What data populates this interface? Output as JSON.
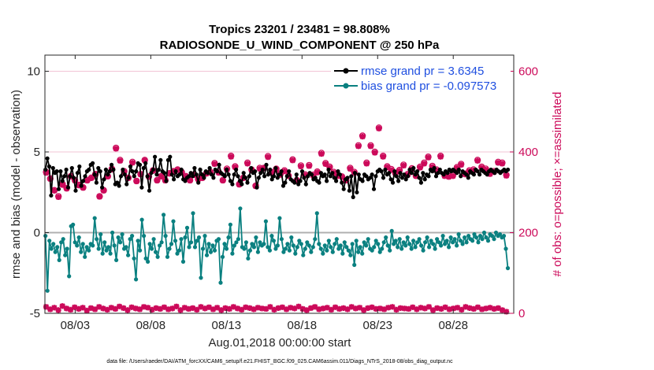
{
  "chart_data": {
    "type": "line",
    "title": "Tropics 23201 / 23481 = 98.808%",
    "subtitle": "RADIOSONDE_U_WIND_COMPONENT @ 250 hPa",
    "xlabel": "Aug.01,2018 00:00:00 start",
    "ylabel": "rmse and bias (model - observation)",
    "ylabel_right": "# of obs: o=possible; ×=assimilated",
    "footnote": "data file: /Users/raeder/DAI/ATM_forcXX/CAM6_setup/f.e21.FHIST_BGC.f09_025.CAM6assim.011/Diags_NTrS_2018-08/obs_diag_output.nc",
    "x_ticks": [
      "08/03",
      "08/08",
      "08/13",
      "08/18",
      "08/23",
      "08/28"
    ],
    "x_tick_days": [
      3,
      8,
      13,
      18,
      23,
      28
    ],
    "xlim_days": [
      1,
      32
    ],
    "y_ticks": [
      -5,
      0,
      5,
      10
    ],
    "ylim": [
      -5,
      11
    ],
    "y2_ticks": [
      0,
      200,
      400,
      600
    ],
    "y2lim": [
      0,
      640
    ],
    "legend": [
      {
        "label": "rmse grand pr = 3.6345",
        "color": "#000000"
      },
      {
        "label": "bias grand pr = -0.097573",
        "color": "#0a8080"
      }
    ],
    "series": [
      {
        "name": "rmse",
        "color": "#000000",
        "values": [
          3.9,
          4.6,
          4.1,
          2.3,
          4.0,
          3.7,
          3.8,
          2.7,
          3.8,
          3.2,
          3.5,
          3.9,
          2.8,
          3.5,
          4.0,
          3.4,
          2.6,
          3.7,
          4.1,
          2.9,
          3.2,
          3.5,
          3.8,
          3.9,
          4.2,
          4.3,
          3.6,
          3.1,
          4.0,
          3.8,
          2.8,
          3.3,
          3.9,
          3.6,
          3.8,
          4.2,
          3.9,
          3.0,
          3.1,
          2.9,
          3.5,
          3.9,
          3.6,
          3.0,
          3.4,
          4.1,
          3.8,
          3.5,
          3.8,
          4.3,
          4.2,
          2.8,
          4.0,
          4.3,
          3.5,
          2.6,
          3.7,
          3.9,
          4.7,
          3.6,
          3.9,
          4.5,
          3.8,
          3.7,
          3.2,
          4.5,
          4.7,
          3.6,
          3.3,
          3.8,
          3.5,
          3.6,
          3.9,
          3.3,
          3.2,
          3.4,
          3.5,
          3.7,
          3.5,
          4.0,
          3.6,
          3.1,
          3.9,
          3.6,
          3.4,
          3.8,
          3.7,
          4.0,
          3.6,
          3.4,
          3.9,
          3.8,
          4.2,
          3.7,
          3.6,
          3.5,
          3.9,
          3.6,
          3.2,
          3.0,
          3.6,
          3.9,
          3.5,
          3.2,
          3.0,
          3.7,
          3.4,
          3.1,
          3.5,
          4.0,
          3.7,
          3.8,
          2.8,
          3.4,
          3.7,
          3.9,
          3.5,
          4.2,
          3.6,
          3.9,
          3.3,
          3.5,
          4.0,
          3.4,
          3.6,
          3.8,
          2.9,
          3.1,
          3.5,
          3.8,
          3.3,
          3.2,
          3.1,
          3.6,
          3.0,
          3.2,
          3.8,
          3.4,
          3.0,
          3.5,
          3.7,
          3.6,
          3.3,
          3.4,
          3.2,
          3.1,
          3.7,
          3.5,
          3.6,
          3.2,
          3.9,
          3.5,
          3.7,
          3.4,
          3.2,
          3.8,
          3.6,
          3.1,
          2.7,
          3.3,
          3.4,
          2.6,
          3.5,
          2.2,
          3.7,
          2.5,
          3.6,
          3.3,
          3.2,
          3.6,
          3.5,
          3.3,
          3.4,
          3.6,
          2.7,
          3.5,
          3.8,
          3.9,
          3.8,
          3.4,
          3.9,
          3.6,
          3.7,
          3.3,
          3.1,
          3.8,
          3.5,
          3.2,
          3.7,
          3.4,
          3.6,
          3.3,
          3.5,
          3.9,
          3.7,
          4.0,
          3.6,
          3.8,
          3.4,
          3.1,
          3.7,
          3.3,
          3.6,
          3.5,
          3.9,
          3.8,
          4.0,
          3.5,
          3.7,
          3.9,
          3.7,
          3.6,
          3.8,
          3.7,
          3.9,
          3.8,
          3.9,
          3.8,
          3.7,
          3.9,
          3.5,
          3.8,
          3.7,
          3.6,
          3.4,
          3.8,
          3.7,
          3.6,
          3.9,
          3.8,
          3.6,
          3.9,
          3.8,
          3.7,
          3.6,
          3.8,
          3.9,
          3.8,
          3.7,
          3.9,
          3.8,
          3.7,
          3.8,
          3.9,
          3.8,
          3.9
        ]
      },
      {
        "name": "bias",
        "color": "#0a8080",
        "values": [
          -0.2,
          -3.6,
          -0.5,
          -1.0,
          -0.7,
          -1.2,
          -0.9,
          -1.7,
          -0.6,
          -0.4,
          -1.4,
          -1.0,
          -2.7,
          0.4,
          0.5,
          -0.6,
          -0.8,
          -0.3,
          -1.2,
          -0.7,
          -1.5,
          -0.9,
          -1.1,
          -0.7,
          -0.8,
          0.9,
          -0.4,
          -1.0,
          -0.1,
          -1.3,
          -0.6,
          -1.1,
          -0.9,
          -1.3,
          0.0,
          -0.8,
          -1.7,
          -0.3,
          -0.6,
          -0.1,
          -1.0,
          -0.9,
          -1.4,
          -0.4,
          -0.2,
          -1.6,
          -2.9,
          -0.5,
          -1.1,
          0.8,
          -0.2,
          -1.6,
          -1.8,
          -0.7,
          -1.0,
          -0.4,
          -1.2,
          -1.5,
          -0.8,
          -0.6,
          1.1,
          -0.2,
          -1.5,
          -1.0,
          -0.7,
          0.7,
          -0.5,
          -1.3,
          -1.1,
          -0.4,
          -1.8,
          -0.3,
          0.3,
          -0.9,
          -0.6,
          1.2,
          -0.9,
          -0.5,
          -0.3,
          -2.8,
          -1.0,
          -0.2,
          -1.4,
          -0.7,
          -1.2,
          -0.8,
          -1.1,
          -0.5,
          -0.4,
          -3.1,
          -1.5,
          -0.7,
          -1.0,
          -0.3,
          0.5,
          -1.3,
          -0.8,
          -0.6,
          -0.4,
          1.5,
          -0.9,
          -1.0,
          -0.6,
          -1.6,
          -1.1,
          -0.7,
          -0.9,
          -0.3,
          -1.2,
          -0.6,
          -0.8,
          -0.7,
          0.7,
          -0.9,
          -1.1,
          -0.2,
          -0.5,
          -1.0,
          -0.8,
          0.9,
          -0.4,
          -1.2,
          -1.0,
          -0.7,
          -1.1,
          -0.3,
          -0.8,
          -1.3,
          -0.9,
          -0.5,
          -0.7,
          -1.4,
          -1.0,
          -0.6,
          -0.8,
          -1.2,
          -0.9,
          -0.4,
          1.2,
          -0.7,
          -1.0,
          -1.3,
          -0.8,
          -1.1,
          -0.5,
          -0.9,
          -1.2,
          -0.7,
          -0.4,
          -1.0,
          -0.8,
          -1.3,
          -0.6,
          -0.9,
          -1.1,
          -1.4,
          -0.7,
          -2.0,
          -0.5,
          -1.2,
          -0.9,
          -1.3,
          -0.6,
          -0.8,
          -0.4,
          -1.0,
          -1.1,
          -0.9,
          -0.5,
          -0.7,
          -1.2,
          -1.0,
          -0.6,
          -0.3,
          -0.8,
          -1.1,
          0.1,
          -0.7,
          -0.5,
          -0.9,
          -0.4,
          -1.0,
          -0.6,
          -0.8,
          -0.3,
          -0.7,
          -1.0,
          -0.5,
          -0.9,
          -0.6,
          -0.4,
          -0.8,
          -1.1,
          -0.6,
          -0.3,
          -0.9,
          -0.5,
          -0.7,
          -1.0,
          -0.4,
          -0.6,
          -0.8,
          -0.2,
          -0.7,
          -0.5,
          -0.9,
          -0.3,
          -0.6,
          -0.4,
          -0.8,
          -0.1,
          -0.5,
          -0.7,
          -0.3,
          -0.6,
          -0.2,
          -0.4,
          -0.5,
          -0.1,
          -0.3,
          -0.6,
          -0.2,
          -0.4,
          0.0,
          -0.3,
          -0.5,
          -0.1,
          -0.2,
          -0.4,
          0.0,
          -0.2,
          -0.1,
          -0.3,
          -0.2,
          -1.0,
          -2.2
        ]
      },
      {
        "name": "obs_possible",
        "color": "#cc0a5a",
        "marker": "o",
        "axis": "right",
        "values": [
          350,
          334,
          305,
          290,
          320,
          310,
          340,
          330,
          318,
          312,
          330,
          336,
          345,
          290,
          305,
          340,
          358,
          410,
          380,
          352,
          336,
          375,
          328,
          345,
          380,
          339,
          354,
          330,
          340,
          330,
          347,
          352,
          356,
          350,
          340,
          330,
          344,
          333,
          336,
          347,
          350,
          372,
          350,
          330,
          358,
          390,
          364,
          320,
          336,
          373,
          356,
          316,
          360,
          360,
          389,
          349,
          358,
          345,
          354,
          341,
          381,
          330,
          366,
          344,
          367,
          343,
          351,
          397,
          372,
          363,
          350,
          342,
          339,
          330,
          360,
          350,
          416,
          440,
          373,
          416,
          400,
          460,
          390,
          364,
          357,
          348,
          355,
          368,
          345,
          359,
          341,
          363,
          373,
          388,
          365,
          356,
          390,
          342,
          340,
          342,
          362,
          370,
          346,
          354,
          356,
          380,
          363,
          358,
          347,
          352,
          375,
          373,
          343
        ]
      },
      {
        "name": "obs_assimilated",
        "color": "#cc0a5a",
        "marker": "x",
        "axis": "right",
        "values": [
          348,
          333,
          304,
          288,
          318,
          309,
          339,
          329,
          317,
          311,
          329,
          335,
          344,
          289,
          304,
          339,
          356,
          408,
          378,
          350,
          335,
          373,
          327,
          344,
          379,
          338,
          353,
          329,
          339,
          329,
          346,
          351,
          355,
          349,
          339,
          329,
          343,
          332,
          335,
          346,
          349,
          370,
          348,
          329,
          356,
          388,
          362,
          319,
          335,
          371,
          354,
          315,
          358,
          359,
          387,
          348,
          356,
          343,
          352,
          340,
          379,
          329,
          364,
          342,
          365,
          341,
          349,
          395,
          370,
          361,
          348,
          340,
          338,
          329,
          358,
          348,
          414,
          438,
          371,
          414,
          398,
          458,
          388,
          362,
          355,
          346,
          353,
          366,
          343,
          357,
          340,
          361,
          371,
          386,
          363,
          354,
          388,
          340,
          338,
          340,
          360,
          368,
          344,
          352,
          354,
          378,
          361,
          356,
          345,
          350,
          373,
          371,
          341
        ]
      },
      {
        "name": "obs_low",
        "color": "#cc0a5a",
        "marker": "x",
        "axis": "right",
        "values": [
          16,
          10,
          14,
          8,
          18,
          12,
          9,
          15,
          11,
          14,
          7,
          13,
          10,
          16,
          12,
          9,
          14,
          11,
          17,
          13,
          8,
          15,
          12,
          10,
          16,
          14,
          9,
          13,
          11,
          15,
          10,
          12,
          17,
          8,
          14,
          11,
          13,
          9,
          16,
          12,
          15,
          10,
          14,
          8,
          13,
          11,
          16,
          12,
          9,
          15,
          13,
          10,
          14,
          12,
          11,
          16,
          9,
          13,
          15,
          10,
          14,
          12,
          17,
          11,
          8,
          13,
          16,
          10,
          12,
          14,
          9,
          15,
          11,
          13,
          10,
          16,
          12,
          14,
          8,
          13,
          15,
          11,
          12,
          10,
          14,
          16,
          9,
          13,
          12,
          11,
          15,
          10,
          14,
          12,
          16,
          8,
          13,
          11,
          15,
          10,
          12,
          14,
          9,
          16,
          13,
          11,
          15,
          10,
          12,
          14,
          11,
          13,
          8,
          4
        ]
      }
    ]
  }
}
